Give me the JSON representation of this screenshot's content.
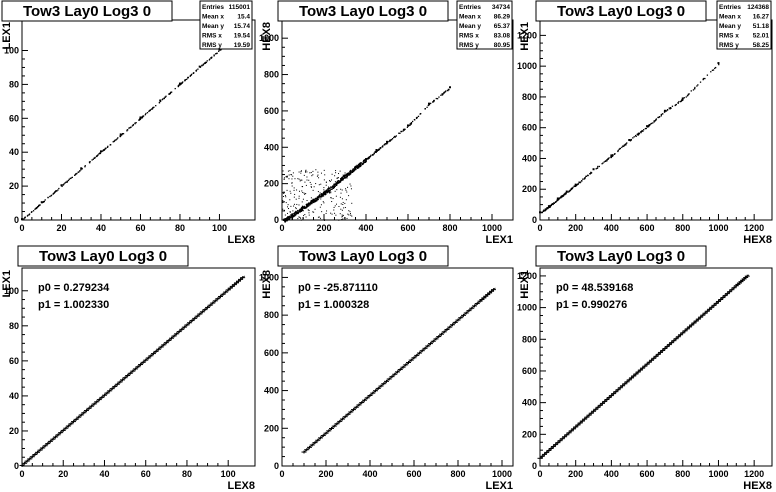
{
  "chart_data": [
    {
      "type": "scatter",
      "title": "Tow3 Lay0 Log3 0",
      "xlabel": "LEX8",
      "ylabel": "LEX1",
      "xlim": [
        0,
        118
      ],
      "ylim": [
        0,
        118
      ],
      "xticks": [
        0,
        20,
        40,
        60,
        80,
        100
      ],
      "yticks": [
        0,
        20,
        40,
        60,
        80,
        100
      ],
      "stats": [
        {
          "label": "Entries",
          "value": "115001"
        },
        {
          "label": "Mean x",
          "value": "15.4"
        },
        {
          "label": "Mean y",
          "value": "15.74"
        },
        {
          "label": "RMS x",
          "value": "19.54"
        },
        {
          "label": "RMS y",
          "value": "19.59"
        }
      ],
      "x": [
        0,
        10,
        20,
        30,
        40,
        50,
        60,
        70,
        80,
        90,
        100,
        104
      ],
      "y": [
        0.5,
        10.5,
        20.5,
        30.5,
        40.5,
        50.5,
        60.5,
        70.5,
        80.5,
        90.5,
        100.5,
        104.5
      ]
    },
    {
      "type": "scatter",
      "title": "Tow3 Lay0 Log3 0",
      "xlabel": "LEX1",
      "ylabel": "HEX8",
      "xlim": [
        0,
        1100
      ],
      "ylim": [
        0,
        1100
      ],
      "xticks": [
        0,
        200,
        400,
        600,
        800,
        1000
      ],
      "yticks": [
        0,
        200,
        400,
        600,
        800,
        1000
      ],
      "stats": [
        {
          "label": "Entries",
          "value": "34734"
        },
        {
          "label": "Mean x",
          "value": "86.29"
        },
        {
          "label": "Mean y",
          "value": "65.37"
        },
        {
          "label": "RMS x",
          "value": "83.08"
        },
        {
          "label": "RMS y",
          "value": "80.95"
        }
      ],
      "x": [
        10,
        50,
        100,
        150,
        200,
        250,
        300,
        350,
        400,
        450,
        500,
        600,
        700,
        800
      ],
      "y": [
        0,
        30,
        70,
        110,
        150,
        195,
        245,
        290,
        335,
        385,
        430,
        520,
        640,
        730
      ]
    },
    {
      "type": "scatter",
      "title": "Tow3 Lay0 Log3 0",
      "xlabel": "HEX8",
      "ylabel": "HEX1",
      "xlim": [
        0,
        1300
      ],
      "ylim": [
        0,
        1300
      ],
      "xticks": [
        0,
        200,
        400,
        600,
        800,
        1000,
        1200
      ],
      "yticks": [
        0,
        200,
        400,
        600,
        800,
        1000,
        1200
      ],
      "stats": [
        {
          "label": "Entries",
          "value": "124368"
        },
        {
          "label": "Mean x",
          "value": "16.27"
        },
        {
          "label": "Mean y",
          "value": "51.18"
        },
        {
          "label": "RMS x",
          "value": "52.01"
        },
        {
          "label": "RMS y",
          "value": "58.25"
        }
      ],
      "x": [
        0,
        50,
        100,
        150,
        200,
        300,
        400,
        500,
        600,
        700,
        800,
        1000
      ],
      "y": [
        50,
        90,
        140,
        185,
        230,
        330,
        420,
        520,
        610,
        710,
        790,
        1020
      ]
    },
    {
      "type": "line",
      "title": "Tow3 Lay0 Log3 0",
      "xlabel": "LEX8",
      "ylabel": "LEX1",
      "xlim": [
        0,
        113
      ],
      "ylim": [
        0,
        113
      ],
      "xticks": [
        0,
        20,
        40,
        60,
        80,
        100
      ],
      "yticks": [
        0,
        20,
        40,
        60,
        80,
        100
      ],
      "fit": [
        {
          "label": "p0 = 0.279234"
        },
        {
          "label": "p1 = 1.002330"
        }
      ],
      "x": [
        0,
        10,
        20,
        30,
        40,
        50,
        60,
        70,
        80,
        90,
        100,
        108
      ],
      "y": [
        0.3,
        10.3,
        20.3,
        30.4,
        40.4,
        50.4,
        60.4,
        70.4,
        80.5,
        90.5,
        100.5,
        108.5
      ]
    },
    {
      "type": "line",
      "title": "Tow3 Lay0 Log3 0",
      "xlabel": "LEX1",
      "ylabel": "HEX8",
      "xlim": [
        0,
        1050
      ],
      "ylim": [
        0,
        1050
      ],
      "xticks": [
        0,
        200,
        400,
        600,
        800,
        1000
      ],
      "yticks": [
        0,
        200,
        400,
        600,
        800,
        1000
      ],
      "fit": [
        {
          "label": "p0 = -25.871110"
        },
        {
          "label": "p1 = 1.000328"
        }
      ],
      "x": [
        100,
        200,
        300,
        400,
        500,
        600,
        700,
        800,
        900,
        970
      ],
      "y": [
        74,
        174,
        274,
        374,
        474,
        574,
        674,
        774,
        874,
        944
      ]
    },
    {
      "type": "line",
      "title": "Tow3 Lay0 Log3 0",
      "xlabel": "HEX8",
      "ylabel": "HEX1",
      "xlim": [
        0,
        1300
      ],
      "ylim": [
        0,
        1250
      ],
      "xticks": [
        0,
        200,
        400,
        600,
        800,
        1000,
        1200
      ],
      "yticks": [
        0,
        200,
        400,
        600,
        800,
        1000,
        1200
      ],
      "fit": [
        {
          "label": "p0 = 48.539168"
        },
        {
          "label": "p1 = 0.990276"
        }
      ],
      "x": [
        0,
        100,
        200,
        300,
        400,
        500,
        600,
        700,
        800,
        900,
        1000,
        1100,
        1170
      ],
      "y": [
        48.5,
        147.6,
        246.6,
        345.6,
        444.6,
        543.7,
        642.7,
        741.7,
        840.8,
        939.8,
        1038.8,
        1137.8,
        1207.2
      ]
    }
  ]
}
